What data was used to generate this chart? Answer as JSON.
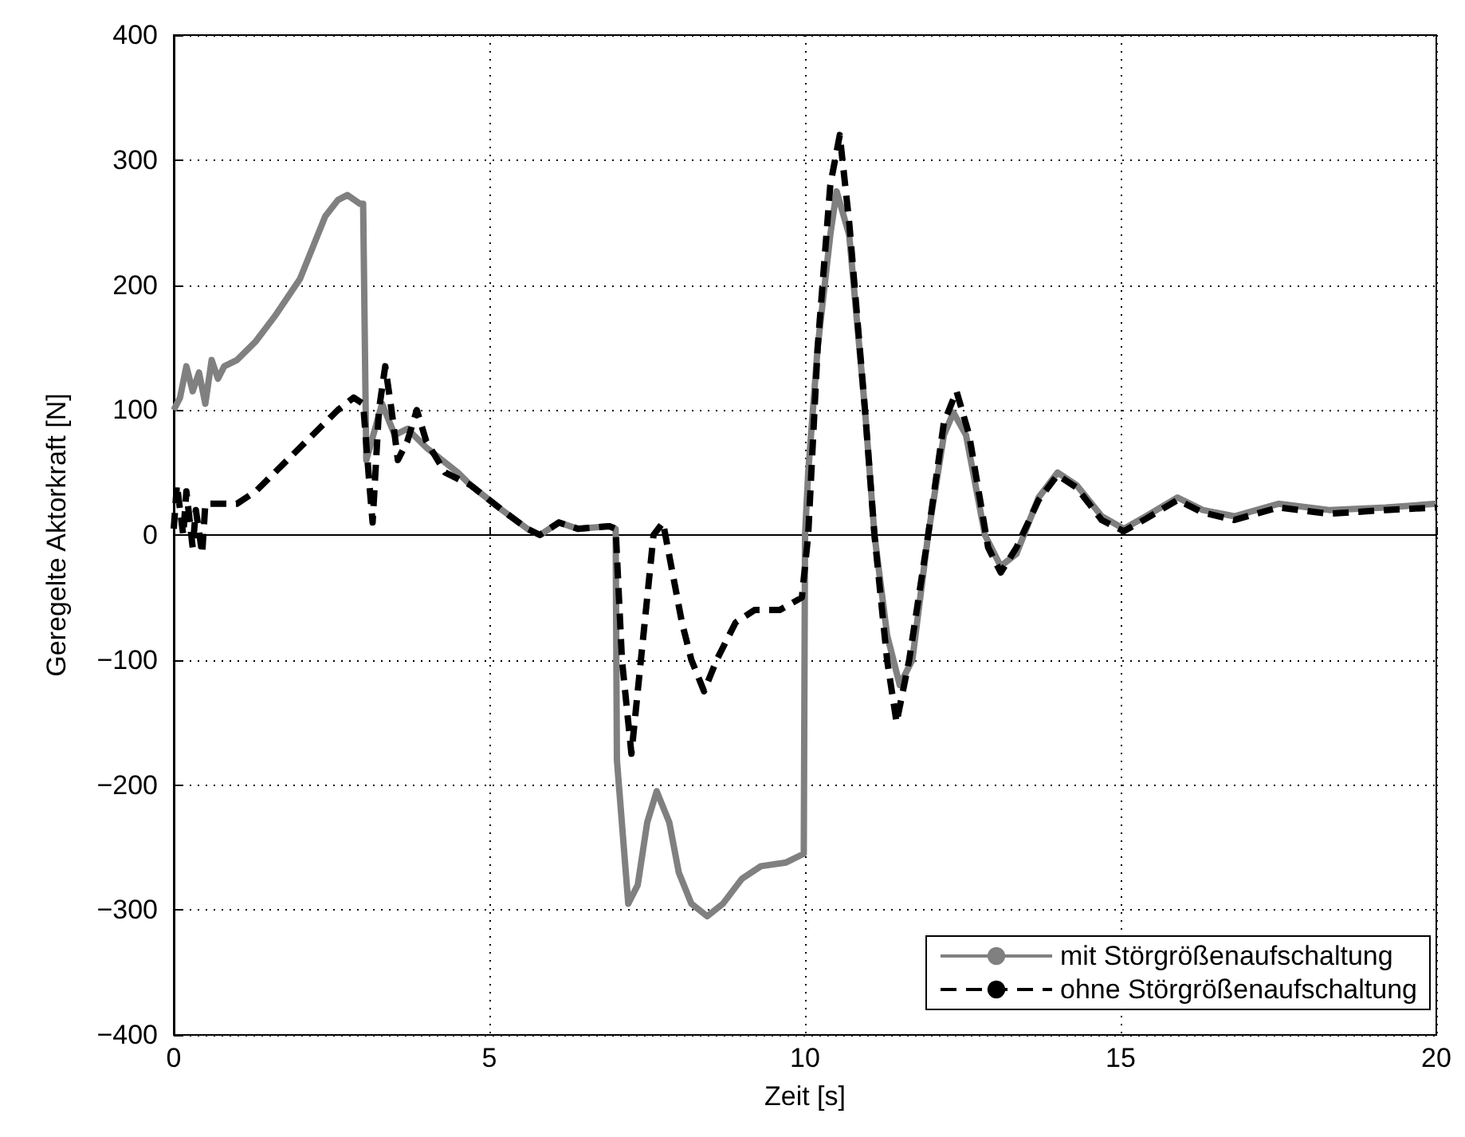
{
  "chart_data": {
    "type": "line",
    "xlabel": "Zeit [s]",
    "ylabel": "Geregelte Aktorkraft [N]",
    "xlim": [
      0,
      20
    ],
    "xticks": [
      0,
      5,
      10,
      15,
      20
    ],
    "ylim": [
      -400,
      400
    ],
    "yticks": [
      -400,
      -300,
      -200,
      -100,
      0,
      100,
      200,
      300,
      400
    ],
    "grid": true,
    "legend": "bottom right",
    "marker": "none",
    "series": [
      {
        "name": "mit Störgrößenaufschaltung",
        "color": "#808080",
        "line_style": "solid",
        "x": [
          0,
          0.1,
          0.2,
          0.3,
          0.4,
          0.5,
          0.6,
          0.7,
          0.8,
          1.0,
          1.3,
          1.6,
          2.0,
          2.2,
          2.4,
          2.6,
          2.75,
          2.95,
          3.0,
          3.05,
          3.3,
          3.5,
          3.7,
          4.0,
          4.5,
          4.7,
          5.2,
          5.6,
          5.8,
          6.1,
          6.4,
          6.9,
          7.0,
          7.02,
          7.2,
          7.35,
          7.5,
          7.65,
          7.85,
          8.0,
          8.2,
          8.45,
          8.7,
          9.0,
          9.3,
          9.7,
          9.98,
          10.0,
          10.05,
          10.2,
          10.4,
          10.5,
          10.7,
          10.95,
          11.1,
          11.3,
          11.5,
          11.7,
          11.95,
          12.2,
          12.35,
          12.55,
          12.85,
          13.1,
          13.35,
          13.7,
          14.0,
          14.3,
          14.7,
          15.05,
          15.4,
          15.9,
          16.3,
          16.8,
          17.5,
          18.3,
          19.2,
          20
        ],
        "values": [
          100,
          110,
          135,
          115,
          130,
          105,
          140,
          125,
          135,
          140,
          155,
          175,
          205,
          230,
          255,
          268,
          272,
          265,
          265,
          60,
          105,
          80,
          85,
          70,
          50,
          40,
          20,
          5,
          0,
          10,
          5,
          7,
          5,
          -180,
          -295,
          -280,
          -230,
          -205,
          -230,
          -270,
          -295,
          -305,
          -295,
          -275,
          -265,
          -262,
          -255,
          0,
          50,
          150,
          240,
          275,
          240,
          100,
          0,
          -80,
          -120,
          -100,
          0,
          80,
          98,
          80,
          0,
          -25,
          -15,
          30,
          50,
          40,
          15,
          5,
          15,
          30,
          20,
          15,
          25,
          20,
          22,
          25
        ]
      },
      {
        "name": "ohne Störgrößenaufschaltung",
        "color": "#000000",
        "line_style": "dashed",
        "x": [
          0,
          0.05,
          0.15,
          0.2,
          0.3,
          0.35,
          0.45,
          0.5,
          0.7,
          1.0,
          1.3,
          1.6,
          2.0,
          2.3,
          2.6,
          2.85,
          3.0,
          3.1,
          3.15,
          3.25,
          3.35,
          3.45,
          3.55,
          3.7,
          3.85,
          4.0,
          4.3,
          4.7,
          5.2,
          5.6,
          5.8,
          6.1,
          6.4,
          6.9,
          7.0,
          7.1,
          7.25,
          7.4,
          7.6,
          7.75,
          7.9,
          8.05,
          8.2,
          8.4,
          8.6,
          8.9,
          9.2,
          9.6,
          9.95,
          10.05,
          10.2,
          10.4,
          10.55,
          10.7,
          10.95,
          11.1,
          11.3,
          11.45,
          11.65,
          11.95,
          12.2,
          12.4,
          12.6,
          12.9,
          13.1,
          13.35,
          13.7,
          14.0,
          14.3,
          14.7,
          15.05,
          15.4,
          15.9,
          16.3,
          16.8,
          17.5,
          18.3,
          19.2,
          20
        ],
        "values": [
          5,
          40,
          0,
          35,
          -10,
          20,
          -15,
          25,
          25,
          25,
          35,
          50,
          70,
          85,
          100,
          110,
          105,
          40,
          10,
          100,
          135,
          100,
          60,
          75,
          100,
          75,
          50,
          40,
          20,
          5,
          0,
          10,
          5,
          7,
          5,
          -100,
          -175,
          -100,
          0,
          10,
          -30,
          -70,
          -100,
          -125,
          -100,
          -70,
          -60,
          -60,
          -50,
          0,
          150,
          280,
          320,
          250,
          100,
          0,
          -100,
          -150,
          -100,
          0,
          90,
          115,
          80,
          -10,
          -30,
          -10,
          28,
          48,
          38,
          12,
          3,
          13,
          28,
          18,
          12,
          22,
          17,
          20,
          22
        ]
      }
    ]
  }
}
